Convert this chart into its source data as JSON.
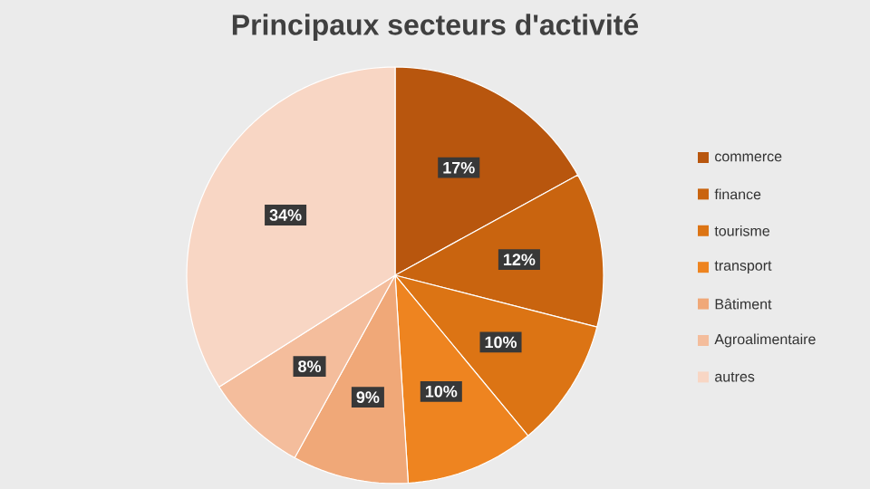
{
  "chart_data": {
    "type": "pie",
    "title": "Principaux secteurs d'activité",
    "categories": [
      "commerce",
      "finance",
      "tourisme",
      "transport",
      "Bâtiment",
      "Agroalimentaire",
      "autres"
    ],
    "values": [
      17,
      12,
      10,
      10,
      9,
      8,
      34
    ],
    "value_labels": [
      "17%",
      "12%",
      "10%",
      "10%",
      "9%",
      "8%",
      "34%"
    ],
    "colors": [
      "#b8560e",
      "#c9640f",
      "#dc7414",
      "#ee8420",
      "#f0a878",
      "#f4bd9c",
      "#f8d6c4"
    ],
    "legend": "right"
  }
}
